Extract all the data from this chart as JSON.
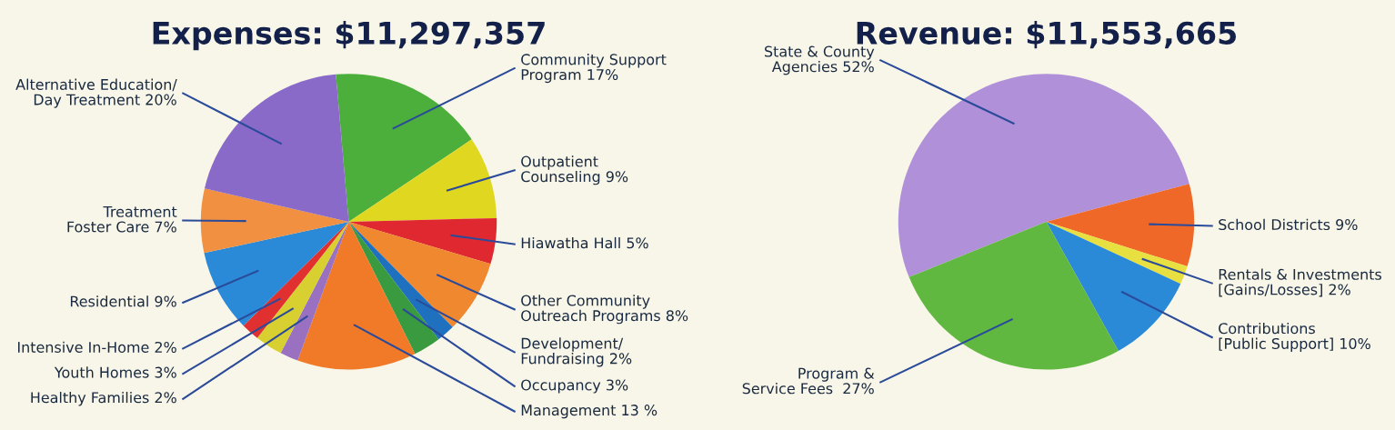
{
  "chart_data": [
    {
      "type": "pie",
      "title": "Expenses: $11,297,357",
      "categories": [
        "Community Support\nProgram 17%",
        "Outpatient\nCounseling 9%",
        "Hiawatha Hall 5%",
        "Other Community\nOutreach Programs 8%",
        "Development/\nFundraising 2%",
        "Occupancy 3%",
        "Management 13 %",
        "Healthy Families 2%",
        "Youth Homes 3%",
        "Intensive In-Home 2%",
        "Residential 9%",
        "Treatment\nFoster Care 7%",
        "Alternative Education/\nDay Treatment 20%"
      ],
      "values": [
        17,
        9,
        5,
        8,
        2,
        3,
        13,
        2,
        3,
        2,
        9,
        7,
        20
      ],
      "colors": [
        "#4caf3c",
        "#e0d820",
        "#e02830",
        "#f08830",
        "#2070c0",
        "#3a9a40",
        "#f07a28",
        "#9a70c0",
        "#d8d030",
        "#e03030",
        "#2a8ad8",
        "#f09040",
        "#8a6ac8"
      ]
    },
    {
      "type": "pie",
      "title": "Revenue: $11,553,665",
      "categories": [
        "State & County\nAgencies 52%",
        "School Districts 9%",
        "Rentals & Investments\n[Gains/Losses] 2%",
        "Contributions\n[Public Support] 10%",
        "Program &\nService Fees  27%"
      ],
      "values": [
        52,
        9,
        2,
        10,
        27
      ],
      "colors": [
        "#b090d8",
        "#f06828",
        "#e8e040",
        "#2a8ad8",
        "#60b840"
      ]
    }
  ]
}
